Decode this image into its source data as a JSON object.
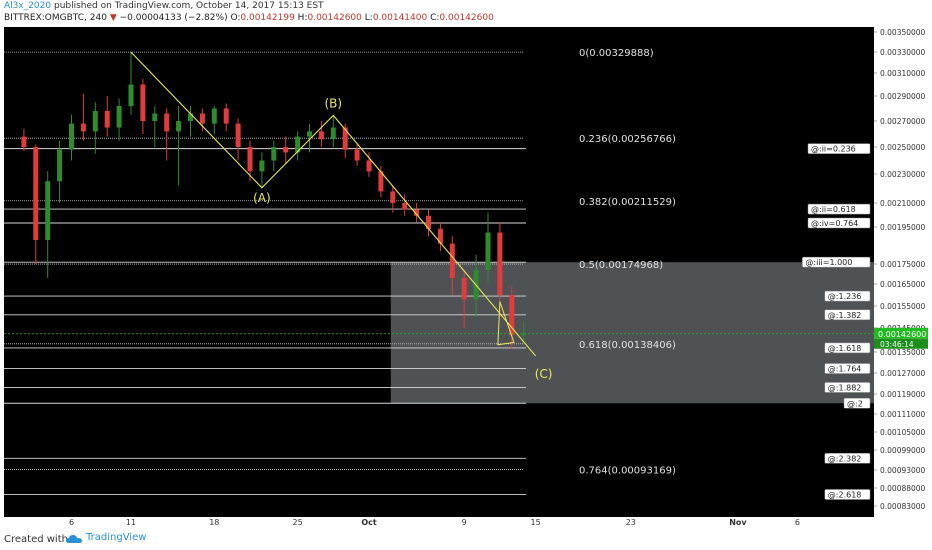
{
  "header": {
    "author": "Al3x_2020",
    "published": " published on TradingView.com, October 14, 2017 15:13 EST",
    "symbol": "BITTREX:OMGBTC, 240 ",
    "change": "−0.00004133 (−2.82%) ",
    "o_label": "O:",
    "o_value": "0.00142199",
    "h_label": " H:",
    "h_value": "0.00142600",
    "l_label": " L:",
    "l_value": "0.00141400",
    "c_label": " C:",
    "c_value": "0.00142600",
    "last": "0.00142600"
  },
  "footer": {
    "created_with": "Created with",
    "brand": "TradingView"
  },
  "colors": {
    "background": "#000000",
    "bull": "#2e8b2e",
    "bear": "#e03c3c",
    "fib_line": "#c8c8c8",
    "wave_line": "#e8e85a",
    "price_tag": "#22bb22"
  },
  "chart_data": {
    "type": "candlestick",
    "y_ticks": [
      "0.00350000",
      "0.00330000",
      "0.00310000",
      "0.00290000",
      "0.00270000",
      "0.00250000",
      "0.00230000",
      "0.00210000",
      "0.00195000",
      "0.00175000",
      "0.00165000",
      "0.00155000",
      "0.00145000",
      "0.00135000",
      "0.00127000",
      "0.00119000",
      "0.00111000",
      "0.00105000",
      "0.00099000",
      "0.00093000",
      "0.00088000",
      "0.00083000"
    ],
    "x_ticks": [
      "6",
      "11",
      "18",
      "25",
      "Oct",
      "9",
      "15",
      "23",
      "Nov",
      "6"
    ],
    "last_price": "0.00142600",
    "countdown": "03:46:14",
    "fib_retracements": [
      {
        "label": "0(0.00329888)",
        "price": 0.00329888
      },
      {
        "label": "0.236(0.00256766)",
        "price": 0.00256766
      },
      {
        "label": "0.382(0.00211529)",
        "price": 0.00211529
      },
      {
        "label": "0.5(0.00174968)",
        "price": 0.00174968
      },
      {
        "label": "0.618(0.00138406)",
        "price": 0.00138406
      },
      {
        "label": "0.764(0.00093169)",
        "price": 0.00093169
      }
    ],
    "fib_extensions": [
      {
        "label": "@:ii=0.236",
        "price": 0.002488
      },
      {
        "label": "@:ii=0.618",
        "price": 0.002062
      },
      {
        "label": "@:iv=0.764",
        "price": 0.001975
      },
      {
        "label": "@:iii=1.000",
        "price": 0.00176
      },
      {
        "label": "@:1.236",
        "price": 0.001595
      },
      {
        "label": "@:1.382",
        "price": 0.00151
      },
      {
        "label": "@:1.618",
        "price": 0.001367
      },
      {
        "label": "@:1.764",
        "price": 0.001287
      },
      {
        "label": "@:1.882",
        "price": 0.001215
      },
      {
        "label": "@:2",
        "price": 0.001153
      },
      {
        "label": "@:2.382",
        "price": 0.000965
      },
      {
        "label": "@:2.618",
        "price": 0.000862
      }
    ],
    "wave_points": [
      {
        "label": "",
        "date": "Sep 11",
        "price": 0.003299
      },
      {
        "label": "(A)",
        "date": "Sep 22",
        "price": 0.002205
      },
      {
        "label": "(B)",
        "date": "Sep 28",
        "price": 0.002745
      },
      {
        "label": "(C)",
        "date": "Oct 15",
        "price": 0.001335
      }
    ],
    "candles": [
      {
        "date": "Sep 2",
        "open": 0.00258,
        "high": 0.00264,
        "low": 0.00247,
        "close": 0.0025
      },
      {
        "date": "Sep 3",
        "open": 0.0025,
        "high": 0.00252,
        "low": 0.00175,
        "close": 0.00188
      },
      {
        "date": "Sep 4",
        "open": 0.00188,
        "high": 0.00232,
        "low": 0.00168,
        "close": 0.00225
      },
      {
        "date": "Sep 5",
        "open": 0.00225,
        "high": 0.00255,
        "low": 0.0021,
        "close": 0.00248
      },
      {
        "date": "Sep 6",
        "open": 0.00248,
        "high": 0.00275,
        "low": 0.0024,
        "close": 0.00268
      },
      {
        "date": "Sep 7",
        "open": 0.00268,
        "high": 0.00292,
        "low": 0.00255,
        "close": 0.00262
      },
      {
        "date": "Sep 8",
        "open": 0.00262,
        "high": 0.00285,
        "low": 0.00245,
        "close": 0.00278
      },
      {
        "date": "Sep 9",
        "open": 0.00278,
        "high": 0.0029,
        "low": 0.00258,
        "close": 0.00265
      },
      {
        "date": "Sep 10",
        "open": 0.00265,
        "high": 0.00288,
        "low": 0.00255,
        "close": 0.00282
      },
      {
        "date": "Sep 11",
        "open": 0.00282,
        "high": 0.0033,
        "low": 0.00275,
        "close": 0.003
      },
      {
        "date": "Sep 12",
        "open": 0.003,
        "high": 0.00305,
        "low": 0.0026,
        "close": 0.0027
      },
      {
        "date": "Sep 13",
        "open": 0.0027,
        "high": 0.00282,
        "low": 0.0025,
        "close": 0.00276
      },
      {
        "date": "Sep 14",
        "open": 0.00276,
        "high": 0.0028,
        "low": 0.0024,
        "close": 0.00262
      },
      {
        "date": "Sep 15",
        "open": 0.00262,
        "high": 0.00282,
        "low": 0.00222,
        "close": 0.0027
      },
      {
        "date": "Sep 16",
        "open": 0.0027,
        "high": 0.00282,
        "low": 0.00258,
        "close": 0.00276
      },
      {
        "date": "Sep 17",
        "open": 0.00276,
        "high": 0.0028,
        "low": 0.00262,
        "close": 0.00268
      },
      {
        "date": "Sep 18",
        "open": 0.00268,
        "high": 0.00282,
        "low": 0.0026,
        "close": 0.0028
      },
      {
        "date": "Sep 19",
        "open": 0.0028,
        "high": 0.00284,
        "low": 0.00262,
        "close": 0.00268
      },
      {
        "date": "Sep 20",
        "open": 0.00268,
        "high": 0.00272,
        "low": 0.0024,
        "close": 0.0025
      },
      {
        "date": "Sep 21",
        "open": 0.0025,
        "high": 0.00255,
        "low": 0.00225,
        "close": 0.00232
      },
      {
        "date": "Sep 22",
        "open": 0.00232,
        "high": 0.00246,
        "low": 0.0022,
        "close": 0.0024
      },
      {
        "date": "Sep 23",
        "open": 0.0024,
        "high": 0.00255,
        "low": 0.00232,
        "close": 0.0025
      },
      {
        "date": "Sep 24",
        "open": 0.0025,
        "high": 0.00258,
        "low": 0.00238,
        "close": 0.00246
      },
      {
        "date": "Sep 25",
        "open": 0.00246,
        "high": 0.00262,
        "low": 0.0024,
        "close": 0.00258
      },
      {
        "date": "Sep 26",
        "open": 0.00258,
        "high": 0.00268,
        "low": 0.00246,
        "close": 0.00262
      },
      {
        "date": "Sep 27",
        "open": 0.00262,
        "high": 0.0027,
        "low": 0.0025,
        "close": 0.00256
      },
      {
        "date": "Sep 28",
        "open": 0.00256,
        "high": 0.00275,
        "low": 0.0025,
        "close": 0.00265
      },
      {
        "date": "Sep 29",
        "open": 0.00265,
        "high": 0.00268,
        "low": 0.00242,
        "close": 0.00248
      },
      {
        "date": "Sep 30",
        "open": 0.00248,
        "high": 0.00252,
        "low": 0.00236,
        "close": 0.0024
      },
      {
        "date": "Oct 1",
        "open": 0.0024,
        "high": 0.00246,
        "low": 0.00228,
        "close": 0.00232
      },
      {
        "date": "Oct 2",
        "open": 0.00232,
        "high": 0.00236,
        "low": 0.00214,
        "close": 0.00218
      },
      {
        "date": "Oct 3",
        "open": 0.00218,
        "high": 0.00222,
        "low": 0.00204,
        "close": 0.0021
      },
      {
        "date": "Oct 4",
        "open": 0.0021,
        "high": 0.00216,
        "low": 0.00202,
        "close": 0.00206
      },
      {
        "date": "Oct 5",
        "open": 0.00206,
        "high": 0.0021,
        "low": 0.00198,
        "close": 0.00202
      },
      {
        "date": "Oct 6",
        "open": 0.00202,
        "high": 0.00206,
        "low": 0.0019,
        "close": 0.00194
      },
      {
        "date": "Oct 7",
        "open": 0.00194,
        "high": 0.00198,
        "low": 0.00182,
        "close": 0.00186
      },
      {
        "date": "Oct 8",
        "open": 0.00186,
        "high": 0.0019,
        "low": 0.0016,
        "close": 0.00168
      },
      {
        "date": "Oct 9",
        "open": 0.00168,
        "high": 0.00172,
        "low": 0.00145,
        "close": 0.00158
      },
      {
        "date": "Oct 10",
        "open": 0.00158,
        "high": 0.0018,
        "low": 0.0015,
        "close": 0.00172
      },
      {
        "date": "Oct 11",
        "open": 0.00172,
        "high": 0.00204,
        "low": 0.00165,
        "close": 0.00192
      },
      {
        "date": "Oct 12",
        "open": 0.00192,
        "high": 0.00198,
        "low": 0.0015,
        "close": 0.0016
      },
      {
        "date": "Oct 13",
        "open": 0.0016,
        "high": 0.00164,
        "low": 0.00136,
        "close": 0.00142
      },
      {
        "date": "Oct 14",
        "open": 0.00142,
        "high": 0.00148,
        "low": 0.00138,
        "close": 0.001426
      }
    ]
  }
}
